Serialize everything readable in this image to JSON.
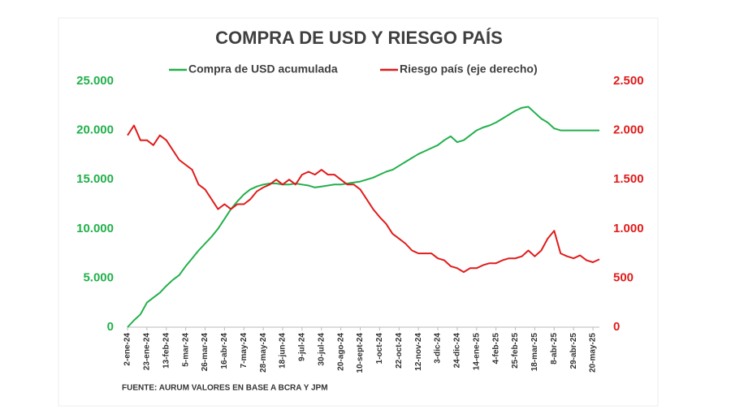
{
  "chart_data": {
    "type": "line",
    "title": "COMPRA DE USD Y RIESGO PAÍS",
    "source": "FUENTE: AURUM VALORES EN BASE A BCRA Y JPM",
    "categories": [
      "2-ene-24",
      null,
      null,
      "23-ene-24",
      null,
      null,
      "13-feb-24",
      null,
      null,
      "5-mar-24",
      null,
      null,
      "26-mar-24",
      null,
      null,
      "16-abr-24",
      null,
      null,
      "7-may-24",
      null,
      null,
      "28-may-24",
      null,
      null,
      "18-jun-24",
      null,
      null,
      "9-jul-24",
      null,
      null,
      "30-jul-24",
      null,
      null,
      "20-ago-24",
      null,
      null,
      "10-sept-24",
      null,
      null,
      "1-oct-24",
      null,
      null,
      "22-oct-24",
      null,
      null,
      "12-nov-24",
      null,
      null,
      "3-dic-24",
      null,
      null,
      "24-dic-24",
      null,
      null,
      "14-ene-25",
      null,
      null,
      "4-feb-25",
      null,
      null,
      "25-feb-25",
      null,
      null,
      "18-mar-25",
      null,
      null,
      "8-abr-25",
      null,
      null,
      "29-abr-25",
      null,
      null,
      "20-may-25",
      null
    ],
    "series": [
      {
        "name": "Compra de USD acumulada",
        "color": "#22b04b",
        "values": [
          0,
          700,
          1300,
          2500,
          3000,
          3500,
          4200,
          4800,
          5300,
          6200,
          7000,
          7800,
          8500,
          9200,
          10000,
          11000,
          12000,
          12800,
          13500,
          14000,
          14300,
          14500,
          14600,
          14600,
          14500,
          14500,
          14600,
          14500,
          14400,
          14200,
          14300,
          14400,
          14500,
          14500,
          14600,
          14700,
          14800,
          15000,
          15200,
          15500,
          15800,
          16000,
          16400,
          16800,
          17200,
          17600,
          17900,
          18200,
          18500,
          19000,
          19400,
          18800,
          19000,
          19500,
          20000,
          20300,
          20500,
          20800,
          21200,
          21600,
          22000,
          22300,
          22400,
          21800,
          21200,
          20800,
          20200,
          20000,
          20000,
          20000,
          20000,
          20000,
          20000,
          20000
        ]
      },
      {
        "name": "Riesgo país (eje derecho)",
        "color": "#e01b1b",
        "axis": "y2",
        "values": [
          1950,
          2050,
          1900,
          1900,
          1850,
          1950,
          1900,
          1800,
          1700,
          1650,
          1600,
          1450,
          1400,
          1300,
          1200,
          1250,
          1200,
          1250,
          1250,
          1300,
          1380,
          1420,
          1450,
          1500,
          1450,
          1500,
          1450,
          1550,
          1580,
          1550,
          1600,
          1550,
          1550,
          1500,
          1450,
          1450,
          1400,
          1300,
          1200,
          1120,
          1050,
          950,
          900,
          850,
          780,
          750,
          750,
          750,
          700,
          680,
          620,
          600,
          560,
          600,
          600,
          630,
          650,
          650,
          680,
          700,
          700,
          720,
          780,
          720,
          780,
          900,
          980,
          750,
          720,
          700,
          730,
          680,
          660,
          690
        ]
      }
    ],
    "ylim": [
      0,
      25000
    ],
    "yticks": [
      0,
      {
        "value": 5000,
        "label": "5.000"
      },
      {
        "value": 10000,
        "label": "10.000"
      },
      {
        "value": 15000,
        "label": "15.000"
      },
      {
        "value": 20000,
        "label": "20.000"
      },
      {
        "value": 25000,
        "label": "25.000"
      }
    ],
    "y2lim": [
      0,
      2500
    ],
    "y2ticks": [
      0,
      500,
      {
        "value": 1000,
        "label": "1.000"
      },
      {
        "value": 1500,
        "label": "1.500"
      },
      {
        "value": 2000,
        "label": "2.000"
      },
      {
        "value": 2500,
        "label": "2.500"
      }
    ],
    "grid": false
  }
}
